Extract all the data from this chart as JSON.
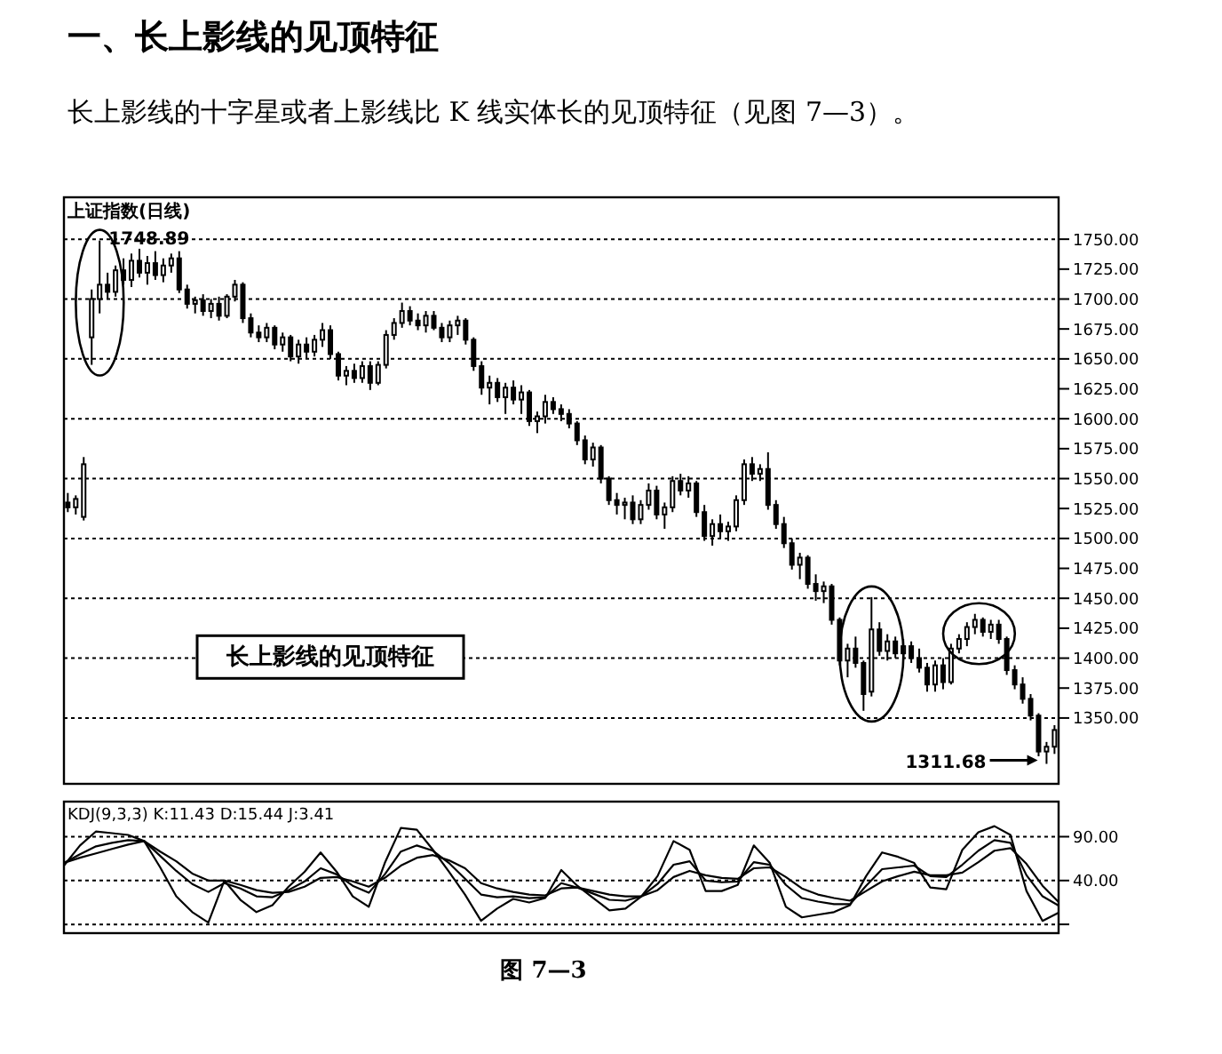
{
  "chart_data": [
    {
      "type": "candlestick",
      "title": "一、长上影线的见顶特征",
      "subtitle": "长上影线的十字星或者上影线比 K 线实体长的见顶特征（见图 7—3）。",
      "color": "#000000",
      "categories": [
        null,
        null,
        null,
        null,
        null,
        null,
        null,
        null,
        null,
        null,
        null,
        null,
        null,
        null,
        null,
        null,
        null,
        null,
        null,
        null,
        null,
        null,
        null,
        null,
        null,
        null,
        null,
        null,
        null,
        null,
        null,
        null,
        null,
        null,
        null,
        null,
        null,
        null,
        null,
        null,
        null,
        null,
        null,
        null,
        null,
        null,
        null,
        null,
        null,
        null,
        null,
        null,
        null,
        null,
        null,
        null,
        null,
        null,
        null,
        null,
        null,
        null,
        null,
        null,
        null,
        null,
        null,
        null,
        null,
        null,
        null,
        null,
        null,
        null,
        null,
        null,
        null,
        null,
        null,
        null,
        null,
        null,
        null,
        null,
        null,
        null,
        null,
        null,
        null,
        null,
        null,
        null,
        null,
        null,
        null,
        null,
        null,
        null,
        null,
        null,
        null,
        null,
        null,
        null,
        null,
        null,
        null,
        null,
        null,
        null,
        null,
        null,
        null,
        null,
        null,
        null,
        null,
        null,
        null,
        null,
        null,
        null,
        null,
        null,
        null
      ],
      "ohlc": [
        [
          1530,
          1538,
          1522,
          1526
        ],
        [
          1526,
          1536,
          1520,
          1533
        ],
        [
          1518,
          1568,
          1515,
          1562
        ],
        [
          1668,
          1708,
          1645,
          1700
        ],
        [
          1700,
          1748.89,
          1688,
          1712
        ],
        [
          1712,
          1722,
          1700,
          1706
        ],
        [
          1706,
          1728,
          1702,
          1724
        ],
        [
          1724,
          1734,
          1712,
          1716
        ],
        [
          1716,
          1738,
          1710,
          1732
        ],
        [
          1732,
          1742,
          1718,
          1722
        ],
        [
          1722,
          1736,
          1712,
          1730
        ],
        [
          1730,
          1740,
          1716,
          1720
        ],
        [
          1720,
          1734,
          1714,
          1728
        ],
        [
          1728,
          1738,
          1722,
          1734
        ],
        [
          1734,
          1740,
          1705,
          1708
        ],
        [
          1708,
          1712,
          1692,
          1696
        ],
        [
          1696,
          1702,
          1688,
          1699
        ],
        [
          1699,
          1704,
          1686,
          1690
        ],
        [
          1690,
          1700,
          1684,
          1696
        ],
        [
          1696,
          1702,
          1682,
          1686
        ],
        [
          1686,
          1704,
          1684,
          1702
        ],
        [
          1702,
          1716,
          1698,
          1712
        ],
        [
          1712,
          1714,
          1680,
          1684
        ],
        [
          1684,
          1688,
          1668,
          1672
        ],
        [
          1672,
          1678,
          1664,
          1668
        ],
        [
          1668,
          1680,
          1664,
          1676
        ],
        [
          1676,
          1678,
          1658,
          1662
        ],
        [
          1662,
          1672,
          1656,
          1668
        ],
        [
          1668,
          1670,
          1648,
          1652
        ],
        [
          1652,
          1666,
          1646,
          1662
        ],
        [
          1662,
          1668,
          1650,
          1656
        ],
        [
          1656,
          1670,
          1652,
          1666
        ],
        [
          1666,
          1680,
          1660,
          1674
        ],
        [
          1674,
          1678,
          1650,
          1654
        ],
        [
          1654,
          1656,
          1632,
          1636
        ],
        [
          1636,
          1644,
          1628,
          1640
        ],
        [
          1640,
          1646,
          1630,
          1634
        ],
        [
          1634,
          1648,
          1630,
          1644
        ],
        [
          1644,
          1648,
          1624,
          1630
        ],
        [
          1630,
          1648,
          1628,
          1645
        ],
        [
          1645,
          1674,
          1642,
          1670
        ],
        [
          1670,
          1684,
          1666,
          1680
        ],
        [
          1680,
          1697,
          1676,
          1690
        ],
        [
          1690,
          1694,
          1678,
          1682
        ],
        [
          1682,
          1688,
          1674,
          1678
        ],
        [
          1678,
          1690,
          1672,
          1686
        ],
        [
          1686,
          1690,
          1674,
          1676
        ],
        [
          1676,
          1680,
          1664,
          1668
        ],
        [
          1668,
          1682,
          1664,
          1678
        ],
        [
          1678,
          1686,
          1670,
          1682
        ],
        [
          1682,
          1684,
          1662,
          1666
        ],
        [
          1666,
          1668,
          1640,
          1644
        ],
        [
          1644,
          1648,
          1620,
          1626
        ],
        [
          1626,
          1636,
          1612,
          1630
        ],
        [
          1630,
          1634,
          1614,
          1618
        ],
        [
          1618,
          1630,
          1604,
          1626
        ],
        [
          1626,
          1632,
          1612,
          1616
        ],
        [
          1616,
          1628,
          1604,
          1622
        ],
        [
          1622,
          1624,
          1594,
          1598
        ],
        [
          1598,
          1606,
          1588,
          1602
        ],
        [
          1602,
          1620,
          1596,
          1614
        ],
        [
          1614,
          1618,
          1604,
          1608
        ],
        [
          1608,
          1612,
          1598,
          1604
        ],
        [
          1604,
          1608,
          1592,
          1596
        ],
        [
          1596,
          1598,
          1578,
          1582
        ],
        [
          1582,
          1586,
          1562,
          1566
        ],
        [
          1566,
          1580,
          1560,
          1576
        ],
        [
          1576,
          1578,
          1546,
          1550
        ],
        [
          1550,
          1552,
          1528,
          1532
        ],
        [
          1532,
          1538,
          1520,
          1528
        ],
        [
          1528,
          1534,
          1516,
          1530
        ],
        [
          1530,
          1536,
          1512,
          1516
        ],
        [
          1516,
          1532,
          1512,
          1528
        ],
        [
          1528,
          1546,
          1524,
          1540
        ],
        [
          1540,
          1544,
          1516,
          1520
        ],
        [
          1520,
          1530,
          1508,
          1526
        ],
        [
          1526,
          1552,
          1522,
          1548
        ],
        [
          1548,
          1554,
          1536,
          1540
        ],
        [
          1540,
          1552,
          1534,
          1546
        ],
        [
          1546,
          1548,
          1518,
          1522
        ],
        [
          1522,
          1528,
          1498,
          1502
        ],
        [
          1502,
          1516,
          1494,
          1512
        ],
        [
          1512,
          1520,
          1500,
          1506
        ],
        [
          1506,
          1514,
          1498,
          1510
        ],
        [
          1510,
          1536,
          1506,
          1532
        ],
        [
          1532,
          1566,
          1528,
          1562
        ],
        [
          1562,
          1568,
          1548,
          1554
        ],
        [
          1554,
          1562,
          1548,
          1558
        ],
        [
          1558,
          1572,
          1524,
          1528
        ],
        [
          1528,
          1532,
          1508,
          1512
        ],
        [
          1512,
          1518,
          1492,
          1496
        ],
        [
          1496,
          1500,
          1474,
          1478
        ],
        [
          1478,
          1488,
          1466,
          1484
        ],
        [
          1484,
          1486,
          1458,
          1462
        ],
        [
          1462,
          1470,
          1448,
          1456
        ],
        [
          1456,
          1464,
          1446,
          1460
        ],
        [
          1460,
          1462,
          1428,
          1432
        ],
        [
          1432,
          1434,
          1394,
          1398
        ],
        [
          1398,
          1412,
          1384,
          1408
        ],
        [
          1408,
          1418,
          1392,
          1396
        ],
        [
          1396,
          1398,
          1356,
          1370
        ],
        [
          1372,
          1451,
          1368,
          1424
        ],
        [
          1424,
          1430,
          1402,
          1406
        ],
        [
          1406,
          1420,
          1398,
          1414
        ],
        [
          1414,
          1418,
          1400,
          1404
        ],
        [
          1404,
          1416,
          1398,
          1410
        ],
        [
          1410,
          1414,
          1396,
          1400
        ],
        [
          1400,
          1408,
          1388,
          1392
        ],
        [
          1392,
          1396,
          1372,
          1378
        ],
        [
          1378,
          1398,
          1372,
          1394
        ],
        [
          1394,
          1400,
          1374,
          1380
        ],
        [
          1380,
          1412,
          1378,
          1408
        ],
        [
          1408,
          1420,
          1404,
          1416
        ],
        [
          1416,
          1430,
          1410,
          1426
        ],
        [
          1426,
          1437,
          1420,
          1432
        ],
        [
          1432,
          1434,
          1418,
          1422
        ],
        [
          1422,
          1432,
          1416,
          1428
        ],
        [
          1428,
          1432,
          1412,
          1416
        ],
        [
          1416,
          1418,
          1386,
          1390
        ],
        [
          1390,
          1394,
          1374,
          1378
        ],
        [
          1378,
          1384,
          1362,
          1366
        ],
        [
          1366,
          1370,
          1348,
          1352
        ],
        [
          1352,
          1354,
          1318,
          1322
        ],
        [
          1322,
          1330,
          1311.68,
          1326
        ],
        [
          1326,
          1344,
          1320,
          1340
        ]
      ],
      "ylim": [
        1295,
        1785
      ],
      "yticks": [
        {
          "value": 1350,
          "label": "1350.00"
        },
        {
          "value": 1375,
          "label": "1375.00"
        },
        {
          "value": 1400,
          "label": "1400.00"
        },
        {
          "value": 1425,
          "label": "1425.00"
        },
        {
          "value": 1450,
          "label": "1450.00"
        },
        {
          "value": 1475,
          "label": "1475.00"
        },
        {
          "value": 1500,
          "label": "1500.00"
        },
        {
          "value": 1525,
          "label": "1525.00"
        },
        {
          "value": 1550,
          "label": "1550.00"
        },
        {
          "value": 1575,
          "label": "1575.00"
        },
        {
          "value": 1600,
          "label": "1600.00"
        },
        {
          "value": 1625,
          "label": "1625.00"
        },
        {
          "value": 1650,
          "label": "1650.00"
        },
        {
          "value": 1675,
          "label": "1675.00"
        },
        {
          "value": 1700,
          "label": "1700.00"
        },
        {
          "value": 1725,
          "label": "1725.00"
        },
        {
          "value": 1750,
          "label": "1750.00"
        }
      ],
      "grid": "y",
      "legend": false,
      "tick_labels": "y",
      "annotations": [
        "上证指数(日线)",
        "长上影线的见顶特征",
        "1748.89",
        "1311.68"
      ]
    },
    {
      "type": "line",
      "title": "KDJ(9,3,3)  K:11.43  D:15.44  J:3.41",
      "categories": [
        null,
        null,
        null,
        null,
        null,
        null,
        null,
        null,
        null,
        null,
        null,
        null,
        null,
        null,
        null,
        null,
        null,
        null,
        null,
        null,
        null,
        null,
        null,
        null,
        null,
        null,
        null,
        null,
        null,
        null,
        null,
        null,
        null,
        null,
        null,
        null,
        null,
        null,
        null,
        null,
        null,
        null,
        null,
        null,
        null,
        null,
        null,
        null,
        null,
        null,
        null,
        null,
        null,
        null,
        null,
        null,
        null,
        null,
        null,
        null,
        null,
        null,
        null
      ],
      "ylim": [
        -20,
        130
      ],
      "yticks": [
        {
          "value": -10,
          "label": null
        },
        {
          "value": 40,
          "label": "40.00"
        },
        {
          "value": 90,
          "label": "90.00"
        }
      ],
      "grid": "y",
      "legend": false,
      "tick_labels": "y",
      "marker": "none",
      "line_style": "solid",
      "series": [
        {
          "color": "#000000",
          "values": [
            57,
            80,
            96,
            94,
            92,
            85,
            55,
            22,
            4,
            -8,
            40,
            18,
            4,
            12,
            33,
            50,
            72,
            50,
            22,
            10,
            60,
            100,
            98,
            75,
            50,
            24,
            -6,
            8,
            19,
            15,
            20,
            52,
            34,
            20,
            6,
            8,
            22,
            45,
            85,
            75,
            28,
            28,
            35,
            80,
            60,
            10,
            -2,
            1,
            4,
            12,
            45,
            72,
            67,
            60,
            32,
            30,
            75,
            95,
            102,
            92,
            28,
            -6,
            3.41
          ]
        },
        {
          "color": "#000000",
          "values": [
            60,
            70,
            79,
            83,
            86,
            85,
            68,
            51,
            36,
            27,
            37,
            31,
            22,
            21,
            29,
            39,
            54,
            47,
            34,
            26,
            47,
            73,
            80,
            74,
            60,
            42,
            24,
            21,
            22,
            20,
            21,
            37,
            32,
            25,
            18,
            17,
            22,
            36,
            58,
            62,
            40,
            38,
            39,
            61,
            58,
            35,
            20,
            16,
            13,
            13,
            34,
            53,
            55,
            57,
            45,
            44,
            58,
            74,
            86,
            83,
            46,
            22,
            11.43
          ]
        },
        {
          "color": "#000000",
          "values": [
            60,
            66,
            71,
            76,
            81,
            85,
            73,
            62,
            48,
            40,
            40,
            35,
            29,
            26,
            27,
            33,
            43,
            44,
            39,
            33,
            43,
            57,
            66,
            69,
            63,
            54,
            37,
            31,
            27,
            24,
            23,
            31,
            32,
            28,
            24,
            22,
            22,
            29,
            44,
            51,
            46,
            43,
            42,
            54,
            55,
            44,
            31,
            24,
            20,
            17,
            28,
            39,
            45,
            50,
            46,
            46,
            49,
            61,
            74,
            77,
            59,
            34,
            15.44
          ]
        }
      ],
      "annotations": [
        "图 7—3"
      ]
    }
  ]
}
